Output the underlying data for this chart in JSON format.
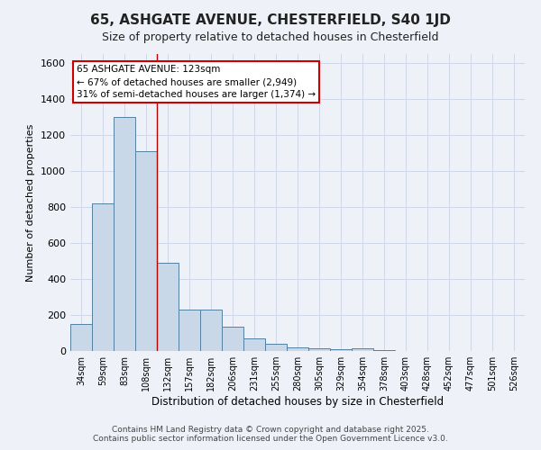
{
  "title": "65, ASHGATE AVENUE, CHESTERFIELD, S40 1JD",
  "subtitle": "Size of property relative to detached houses in Chesterfield",
  "xlabel": "Distribution of detached houses by size in Chesterfield",
  "ylabel": "Number of detached properties",
  "bar_labels": [
    "34sqm",
    "59sqm",
    "83sqm",
    "108sqm",
    "132sqm",
    "157sqm",
    "182sqm",
    "206sqm",
    "231sqm",
    "255sqm",
    "280sqm",
    "305sqm",
    "329sqm",
    "354sqm",
    "378sqm",
    "403sqm",
    "428sqm",
    "452sqm",
    "477sqm",
    "501sqm",
    "526sqm"
  ],
  "bar_values": [
    150,
    820,
    1300,
    1110,
    490,
    230,
    230,
    135,
    70,
    40,
    22,
    13,
    8,
    13,
    4,
    2,
    2,
    1,
    0,
    0,
    0
  ],
  "bar_color": "#c8d8e8",
  "bar_edge_color": "#5580a0",
  "grid_color": "#d0d8e8",
  "background_color": "#eef2f8",
  "vline_x": 4,
  "vline_color": "#bb0000",
  "annotation_text": "65 ASHGATE AVENUE: 123sqm\n← 67% of detached houses are smaller (2,949)\n31% of semi-detached houses are larger (1,374) →",
  "annotation_box_color": "#ffffff",
  "annotation_box_edge": "#cc0000",
  "ylim": [
    0,
    1650
  ],
  "yticks": [
    0,
    200,
    400,
    600,
    800,
    1000,
    1200,
    1400,
    1600
  ],
  "footer_line1": "Contains HM Land Registry data © Crown copyright and database right 2025.",
  "footer_line2": "Contains public sector information licensed under the Open Government Licence v3.0."
}
